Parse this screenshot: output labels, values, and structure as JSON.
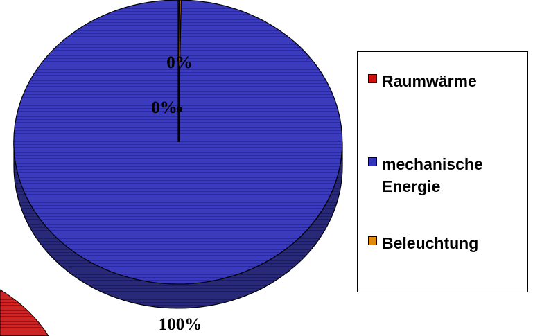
{
  "chart_data": {
    "type": "pie",
    "style": "3d",
    "categories": [
      "Raumwärme",
      "mechanische Energie",
      "Beleuchtung"
    ],
    "values": [
      0.1,
      99.7,
      0.2
    ],
    "data_labels": [
      "0%",
      "100%",
      "0%"
    ],
    "colors": {
      "Raumwärme": "#cc1111",
      "mechanische Energie": "#3333bb",
      "Beleuchtung": "#e08a10"
    },
    "title": "",
    "legend_position": "right"
  },
  "legend": {
    "items": [
      {
        "label": "Raumwärme",
        "color": "#cc1111"
      },
      {
        "label": "mechanische\nEnergie",
        "color": "#3333bb"
      },
      {
        "label": "Beleuchtung",
        "color": "#e08a10"
      }
    ]
  },
  "labels": {
    "top": "0%",
    "mid": "0%",
    "bottom": "100%"
  }
}
